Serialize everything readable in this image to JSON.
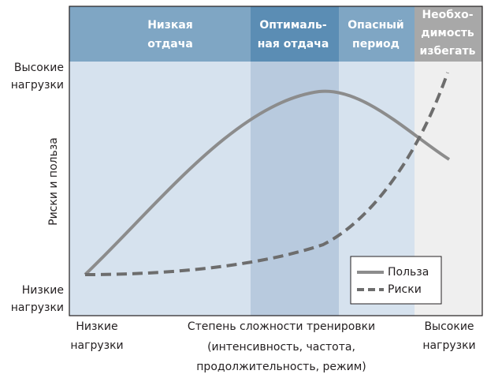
{
  "zones": [
    {
      "lines": [
        "Низкая",
        "отдача"
      ]
    },
    {
      "lines": [
        "Оптималь-",
        "ная отдача"
      ]
    },
    {
      "lines": [
        "Опасный",
        "период"
      ]
    },
    {
      "lines": [
        "Необхо-",
        "димость",
        "избегать"
      ]
    }
  ],
  "y_axis": {
    "title": "Риски и польза",
    "high": [
      "Высокие",
      "нагрузки"
    ],
    "low": [
      "Низкие",
      "нагрузки"
    ]
  },
  "x_axis": {
    "low": [
      "Низкие",
      "нагрузки"
    ],
    "high": [
      "Высокие",
      "нагрузки"
    ],
    "title": [
      "Степень сложности тренировки",
      "(интенсивность, частота,",
      "продолжительность, режим)"
    ]
  },
  "legend": [
    {
      "label": "Польза"
    },
    {
      "label": "Риски"
    }
  ]
}
